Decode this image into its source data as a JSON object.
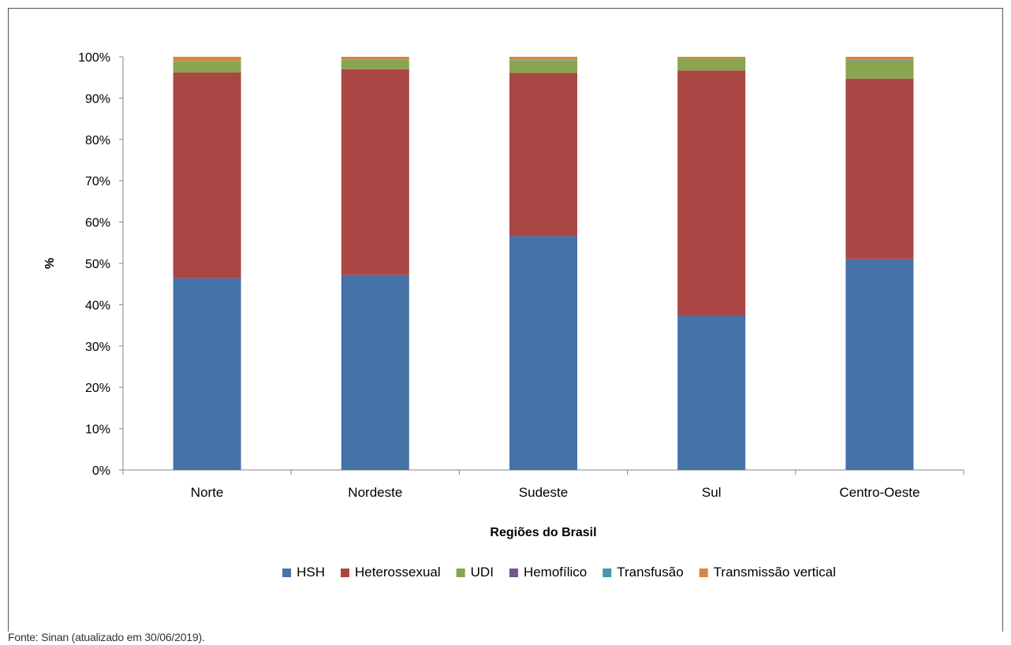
{
  "chart_data": {
    "type": "bar",
    "stacked": true,
    "categories": [
      "Norte",
      "Nordeste",
      "Sudeste",
      "Sul",
      "Centro-Oeste"
    ],
    "series": [
      {
        "name": "HSH",
        "color": "#4572a7",
        "values": [
          46.4,
          47.2,
          56.6,
          37.3,
          51.0
        ]
      },
      {
        "name": "Heterossexual",
        "color": "#aa4643",
        "values": [
          49.8,
          49.8,
          39.5,
          59.4,
          43.7
        ]
      },
      {
        "name": "UDI",
        "color": "#89a54e",
        "values": [
          2.7,
          2.2,
          3.0,
          2.9,
          4.4
        ]
      },
      {
        "name": "Hemofílico",
        "color": "#71588f",
        "values": [
          0.0,
          0.0,
          0.0,
          0.0,
          0.1
        ]
      },
      {
        "name": "Transfusão",
        "color": "#4198af",
        "values": [
          0.1,
          0.1,
          0.1,
          0.0,
          0.1
        ]
      },
      {
        "name": "Transmissão vertical",
        "color": "#db843d",
        "values": [
          1.0,
          0.7,
          0.8,
          0.4,
          0.7
        ]
      }
    ],
    "xlabel": "Regiões do Brasil",
    "ylabel": "%",
    "ylim": [
      0,
      100
    ],
    "yticks": [
      "0%",
      "10%",
      "20%",
      "30%",
      "40%",
      "50%",
      "60%",
      "70%",
      "80%",
      "90%",
      "100%"
    ],
    "grid": false,
    "legend_position": "bottom"
  },
  "source_note": "Fonte: Sinan (atualizado em 30/06/2019)."
}
